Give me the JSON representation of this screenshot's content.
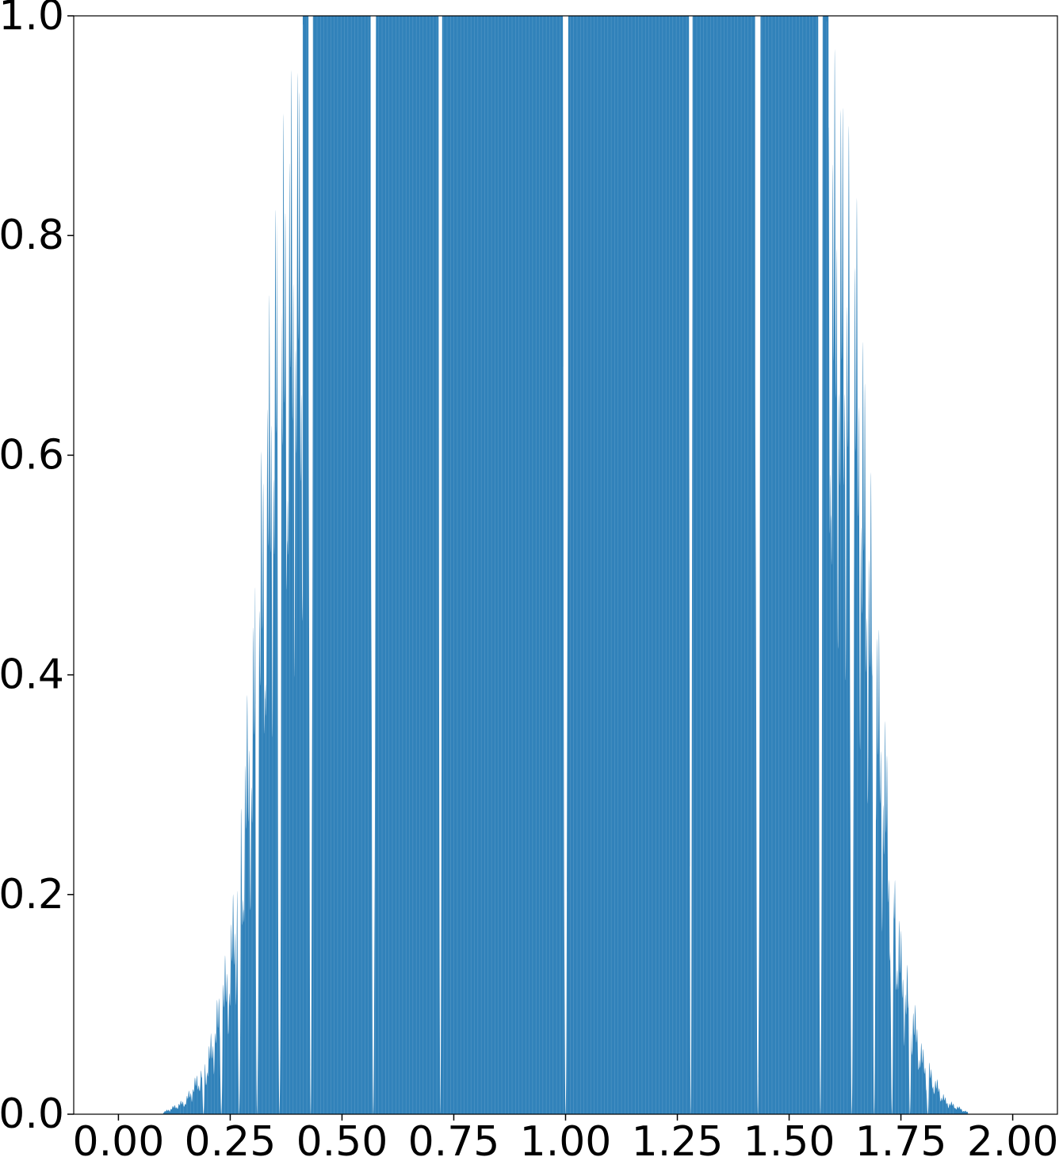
{
  "chart_data": {
    "type": "area",
    "title": "",
    "xlabel": "",
    "ylabel": "",
    "xlim": [
      -0.1,
      2.1
    ],
    "ylim": [
      0.0,
      1.0
    ],
    "grid": false,
    "legend": "none",
    "color": "#1f77b4",
    "x_ticks": [
      0.0,
      0.25,
      0.5,
      0.75,
      1.0,
      1.25,
      1.5,
      1.75,
      2.0
    ],
    "x_tick_labels": [
      "0.00",
      "0.25",
      "0.50",
      "0.75",
      "1.00",
      "1.25",
      "1.50",
      "1.75",
      "2.00"
    ],
    "y_ticks": [
      0.0,
      0.2,
      0.4,
      0.6,
      0.8,
      1.0
    ],
    "y_tick_labels": [
      "0.0",
      "0.2",
      "0.4",
      "0.6",
      "0.8",
      "1.0"
    ],
    "envelope": {
      "x": [
        0.1,
        0.15,
        0.2,
        0.25,
        0.3,
        0.35,
        0.38,
        0.42,
        0.5,
        0.6,
        0.7,
        0.75,
        0.8,
        0.9,
        1.0,
        1.1,
        1.2,
        1.25,
        1.3,
        1.4,
        1.5,
        1.58,
        1.62,
        1.65,
        1.7,
        1.75,
        1.8,
        1.85,
        1.9
      ],
      "y": [
        0.002,
        0.015,
        0.06,
        0.17,
        0.45,
        0.85,
        0.95,
        1.0,
        1.0,
        1.0,
        1.0,
        1.0,
        1.0,
        1.0,
        1.0,
        1.0,
        1.0,
        1.0,
        1.0,
        1.0,
        1.0,
        1.0,
        0.95,
        0.85,
        0.45,
        0.17,
        0.06,
        0.015,
        0.002
      ]
    },
    "gaps": {
      "x": [
        0.0,
        0.19,
        0.23,
        0.27,
        0.31,
        0.36,
        0.43,
        0.57,
        0.72,
        1.0,
        1.28,
        1.43,
        1.57,
        1.64,
        1.69,
        1.73,
        1.77,
        1.81,
        2.0
      ],
      "half_width": [
        0.0,
        0.003,
        0.003,
        0.004,
        0.004,
        0.005,
        0.005,
        0.006,
        0.004,
        0.006,
        0.004,
        0.006,
        0.005,
        0.005,
        0.004,
        0.004,
        0.003,
        0.003,
        0.0
      ]
    },
    "oscillation_period": 0.0045
  }
}
